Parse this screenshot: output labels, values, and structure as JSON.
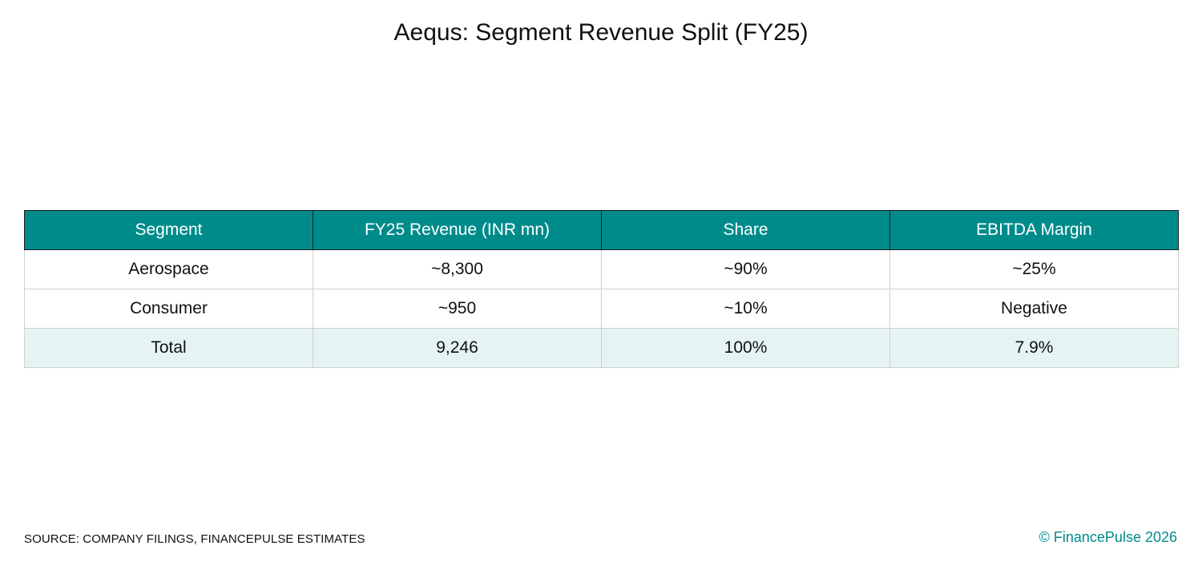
{
  "title": "Aequs: Segment Revenue Split (FY25)",
  "colors": {
    "header_bg": "#008b8b",
    "header_text": "#ffffff",
    "total_row_bg": "#e6f3f3",
    "brand": "#008b8b"
  },
  "chart_data": {
    "type": "table",
    "title": "Aequs: Segment Revenue Split (FY25)",
    "columns": [
      "Segment",
      "FY25 Revenue (INR mn)",
      "Share",
      "EBITDA Margin"
    ],
    "rows": [
      [
        "Aerospace",
        "~8,300",
        "~90%",
        "~25%"
      ],
      [
        "Consumer",
        "~950",
        "~10%",
        "Negative"
      ],
      [
        "Total",
        "9,246",
        "100%",
        "7.9%"
      ]
    ]
  },
  "footer": {
    "source": "SOURCE: COMPANY FILINGS, FINANCEPULSE ESTIMATES",
    "copyright": "© FinancePulse 2026"
  }
}
